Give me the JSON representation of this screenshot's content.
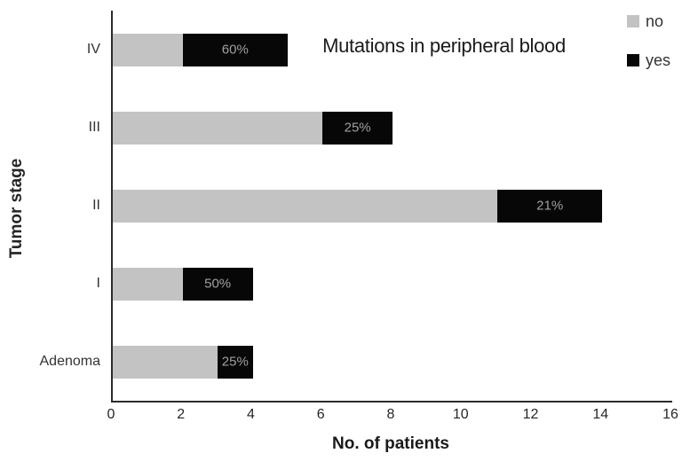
{
  "chart_data": {
    "type": "bar",
    "orientation": "horizontal",
    "stacked": true,
    "title": "Mutations in peripheral blood",
    "xlabel": "No. of patients",
    "ylabel": "Tumor stage",
    "xlim": [
      0,
      16
    ],
    "xticks": [
      0,
      2,
      4,
      6,
      8,
      10,
      12,
      14,
      16
    ],
    "grid": false,
    "legend_position": "top-right",
    "categories": [
      "IV",
      "III",
      "II",
      "I",
      "Adenoma"
    ],
    "series": [
      {
        "name": "no",
        "color": "#c3c3c3",
        "values": [
          2,
          6,
          11,
          2,
          3
        ]
      },
      {
        "name": "yes",
        "color": "#070707",
        "values": [
          3,
          2,
          3,
          2,
          1
        ]
      }
    ],
    "segment_labels": {
      "on_series": "yes",
      "values": [
        "60%",
        "25%",
        "21%",
        "50%",
        "25%"
      ],
      "color": "#a0a0a0"
    },
    "colors": {
      "axis_line": "#2b2b2b",
      "tick_text": "#262626",
      "background": "#ffffff"
    }
  }
}
